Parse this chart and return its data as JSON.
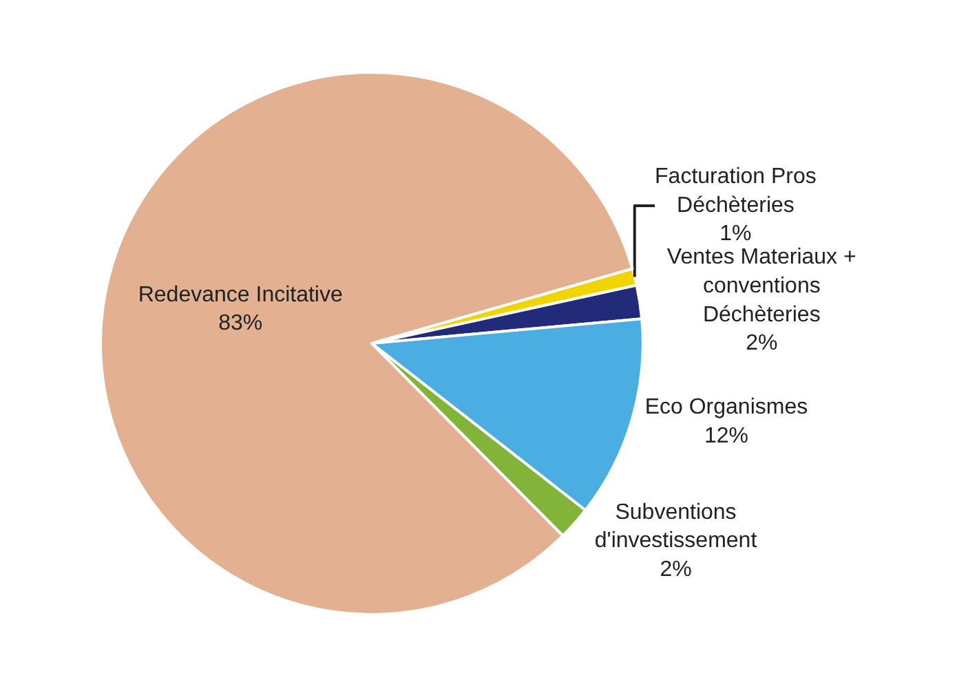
{
  "chart_data": {
    "type": "pie",
    "categories": [
      "Facturation Pros Déchèteries",
      "Ventes Materiaux + conventions Déchèteries",
      "Eco Organismes",
      "Subventions d'investissement",
      "Redevance Incitative"
    ],
    "values": [
      1,
      2,
      12,
      2,
      83
    ],
    "value_labels": [
      "1%",
      "2%",
      "12%",
      "2%",
      "83%"
    ],
    "colors": [
      "#f2d400",
      "#222a7a",
      "#4baee3",
      "#82b43a",
      "#e3b191"
    ],
    "legend": false
  }
}
